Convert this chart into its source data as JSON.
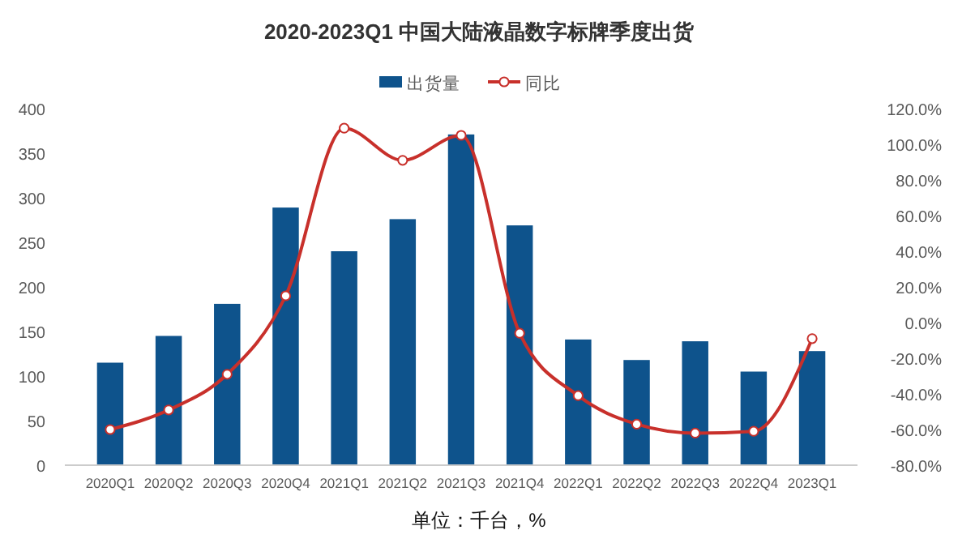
{
  "chart_data": {
    "type": "bar",
    "title": "2020-2023Q1 中国大陆液晶数字标牌季度出货",
    "categories": [
      "2020Q1",
      "2020Q2",
      "2020Q3",
      "2020Q4",
      "2021Q1",
      "2021Q2",
      "2021Q3",
      "2021Q4",
      "2022Q1",
      "2022Q2",
      "2022Q3",
      "2022Q4",
      "2023Q1"
    ],
    "series": [
      {
        "name": "出货量",
        "color": "#0e538c",
        "values": [
          115,
          145,
          181,
          289,
          240,
          276,
          371,
          269,
          141,
          118,
          139,
          105,
          128
        ]
      },
      {
        "name": "同比",
        "type": "line",
        "axis": "y2",
        "color": "#c8302b",
        "marker": "circle",
        "values": [
          -60,
          -49,
          -29,
          15,
          109,
          91,
          105,
          -6,
          -41,
          -57,
          -62,
          -61,
          -9
        ]
      }
    ],
    "ylim": [
      0,
      400
    ],
    "yticks": [
      0,
      50,
      100,
      150,
      200,
      250,
      300,
      350,
      400
    ],
    "y2lim": [
      -80,
      120
    ],
    "y2ticks": [
      {
        "value": -80,
        "label": "-80.0%"
      },
      {
        "value": -60,
        "label": "-60.0%"
      },
      {
        "value": -40,
        "label": "-40.0%"
      },
      {
        "value": -20,
        "label": "-20.0%"
      },
      {
        "value": 0,
        "label": "0.0%"
      },
      {
        "value": 20,
        "label": "20.0%"
      },
      {
        "value": 40,
        "label": "40.0%"
      },
      {
        "value": 60,
        "label": "60.0%"
      },
      {
        "value": 80,
        "label": "80.0%"
      },
      {
        "value": 100,
        "label": "100.0%"
      },
      {
        "value": 120,
        "label": "120.0%"
      }
    ],
    "grid": false,
    "legend": "top",
    "annotations": [
      "单位：千台，%"
    ]
  }
}
